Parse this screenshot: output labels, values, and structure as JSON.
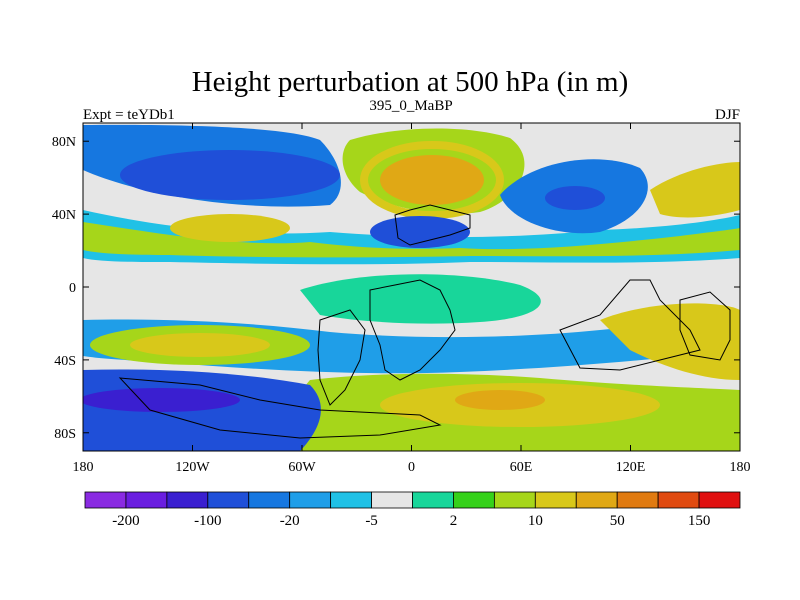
{
  "chart_data": {
    "type": "heatmap",
    "title": "Height perturbation at 500 hPa (in m)",
    "left_label": "Expt = teYDb1",
    "center_label": "395_0_MaBP",
    "right_label": "DJF",
    "x_ticks": [
      "180",
      "120W",
      "60W",
      "0",
      "60E",
      "120E",
      "180"
    ],
    "x_range": [
      -180,
      180
    ],
    "y_ticks": [
      "80N",
      "40N",
      "0",
      "40S",
      "80S"
    ],
    "y_range": [
      -90,
      90
    ],
    "colorbar": {
      "colors": [
        "#8a2be2",
        "#6a1ee0",
        "#3a1fd0",
        "#1f4fd8",
        "#1677e0",
        "#1f9ee8",
        "#20c1e6",
        "#e6e6e6",
        "#18d69a",
        "#35d11a",
        "#a6d61a",
        "#d8c81a",
        "#e0a815",
        "#e07a10",
        "#e04a10",
        "#e01010"
      ],
      "labels": [
        "-200",
        "-100",
        "-20",
        "-5",
        "2",
        "10",
        "50",
        "150"
      ]
    }
  }
}
